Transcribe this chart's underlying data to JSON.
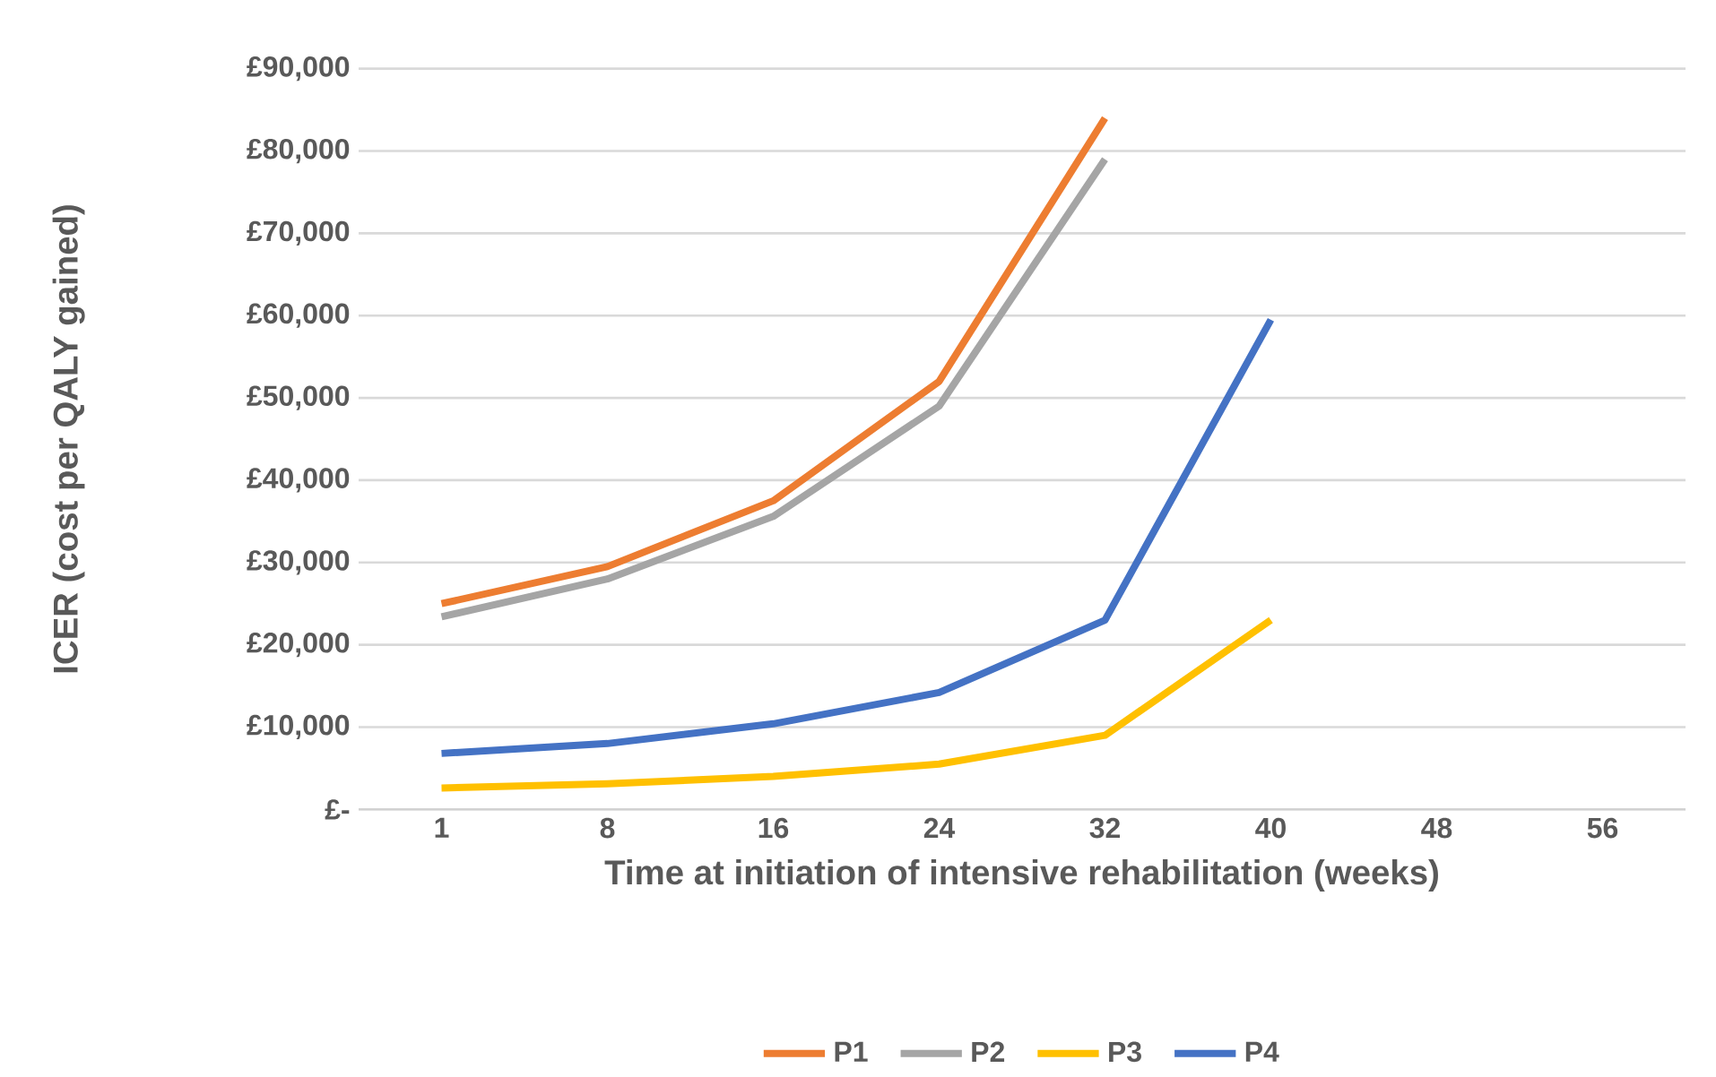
{
  "chart_data": {
    "type": "line",
    "xlabel": "Time at initiation of intensive rehabilitation  (weeks)",
    "ylabel": "ICER (cost per QALY gained)",
    "categories": [
      "1",
      "8",
      "16",
      "24",
      "32",
      "40",
      "48",
      "56"
    ],
    "series": [
      {
        "name": "P1",
        "color": "#ed7d31",
        "values": [
          25000,
          29500,
          37500,
          52000,
          84000,
          null,
          null,
          null
        ]
      },
      {
        "name": "P2",
        "color": "#a5a5a5",
        "values": [
          23400,
          28000,
          35600,
          49000,
          79000,
          null,
          null,
          null
        ]
      },
      {
        "name": "P3",
        "color": "#ffc000",
        "values": [
          2600,
          3100,
          4000,
          5500,
          9000,
          23000,
          null,
          null
        ]
      },
      {
        "name": "P4",
        "color": "#4472c4",
        "values": [
          6800,
          8000,
          10400,
          14200,
          23000,
          59500,
          null,
          null
        ]
      }
    ],
    "ylim": [
      0,
      90000
    ],
    "yticks": [
      {
        "value": 0,
        "label": "£-"
      },
      {
        "value": 10000,
        "label": "£10,000"
      },
      {
        "value": 20000,
        "label": "£20,000"
      },
      {
        "value": 30000,
        "label": "£30,000"
      },
      {
        "value": 40000,
        "label": "£40,000"
      },
      {
        "value": 50000,
        "label": "£50,000"
      },
      {
        "value": 60000,
        "label": "£60,000"
      },
      {
        "value": 70000,
        "label": "£70,000"
      },
      {
        "value": 80000,
        "label": "£80,000"
      },
      {
        "value": 90000,
        "label": "£90,000"
      }
    ],
    "grid": "y",
    "legend": "bottom",
    "marker": "none",
    "line_style": "solid"
  }
}
